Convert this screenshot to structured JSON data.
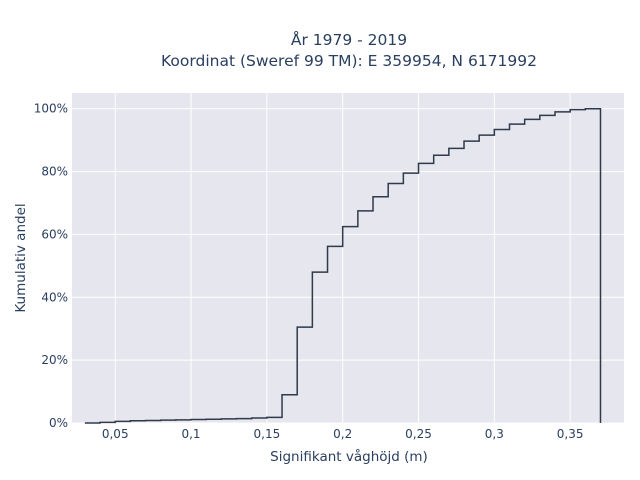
{
  "chart_data": {
    "type": "step",
    "title_line1": "År 1979 - 2019",
    "title_line2": "Koordinat (Sweref 99 TM): E 359954, N 6171992",
    "xlabel": "Signifikant våghöjd (m)",
    "ylabel": "Kumulativ andel",
    "xlim": [
      0.0215,
      0.3855
    ],
    "ylim": [
      0,
      1.05
    ],
    "x_ticks": [
      0.05,
      0.1,
      0.15,
      0.2,
      0.25,
      0.3,
      0.35
    ],
    "x_tick_labels": [
      "0,05",
      "0,1",
      "0,15",
      "0,2",
      "0,25",
      "0,3",
      "0,35"
    ],
    "y_ticks": [
      0,
      0.2,
      0.4,
      0.6,
      0.8,
      1.0
    ],
    "y_tick_labels": [
      "0%",
      "20%",
      "40%",
      "60%",
      "80%",
      "100%"
    ],
    "grid": true,
    "line_color": "#2f3a4a",
    "background_color": "#e5e6ee",
    "x": [
      0.03,
      0.04,
      0.05,
      0.06,
      0.07,
      0.08,
      0.09,
      0.1,
      0.11,
      0.12,
      0.13,
      0.14,
      0.15,
      0.16,
      0.17,
      0.18,
      0.19,
      0.2,
      0.21,
      0.22,
      0.23,
      0.24,
      0.25,
      0.26,
      0.27,
      0.28,
      0.29,
      0.3,
      0.31,
      0.32,
      0.33,
      0.34,
      0.35,
      0.36,
      0.37
    ],
    "y": [
      0.0,
      0.002,
      0.005,
      0.007,
      0.008,
      0.009,
      0.01,
      0.011,
      0.012,
      0.013,
      0.014,
      0.016,
      0.018,
      0.09,
      0.305,
      0.48,
      0.562,
      0.625,
      0.675,
      0.72,
      0.762,
      0.795,
      0.826,
      0.852,
      0.874,
      0.897,
      0.916,
      0.934,
      0.951,
      0.966,
      0.979,
      0.99,
      0.997,
      1.0,
      0.0
    ]
  }
}
